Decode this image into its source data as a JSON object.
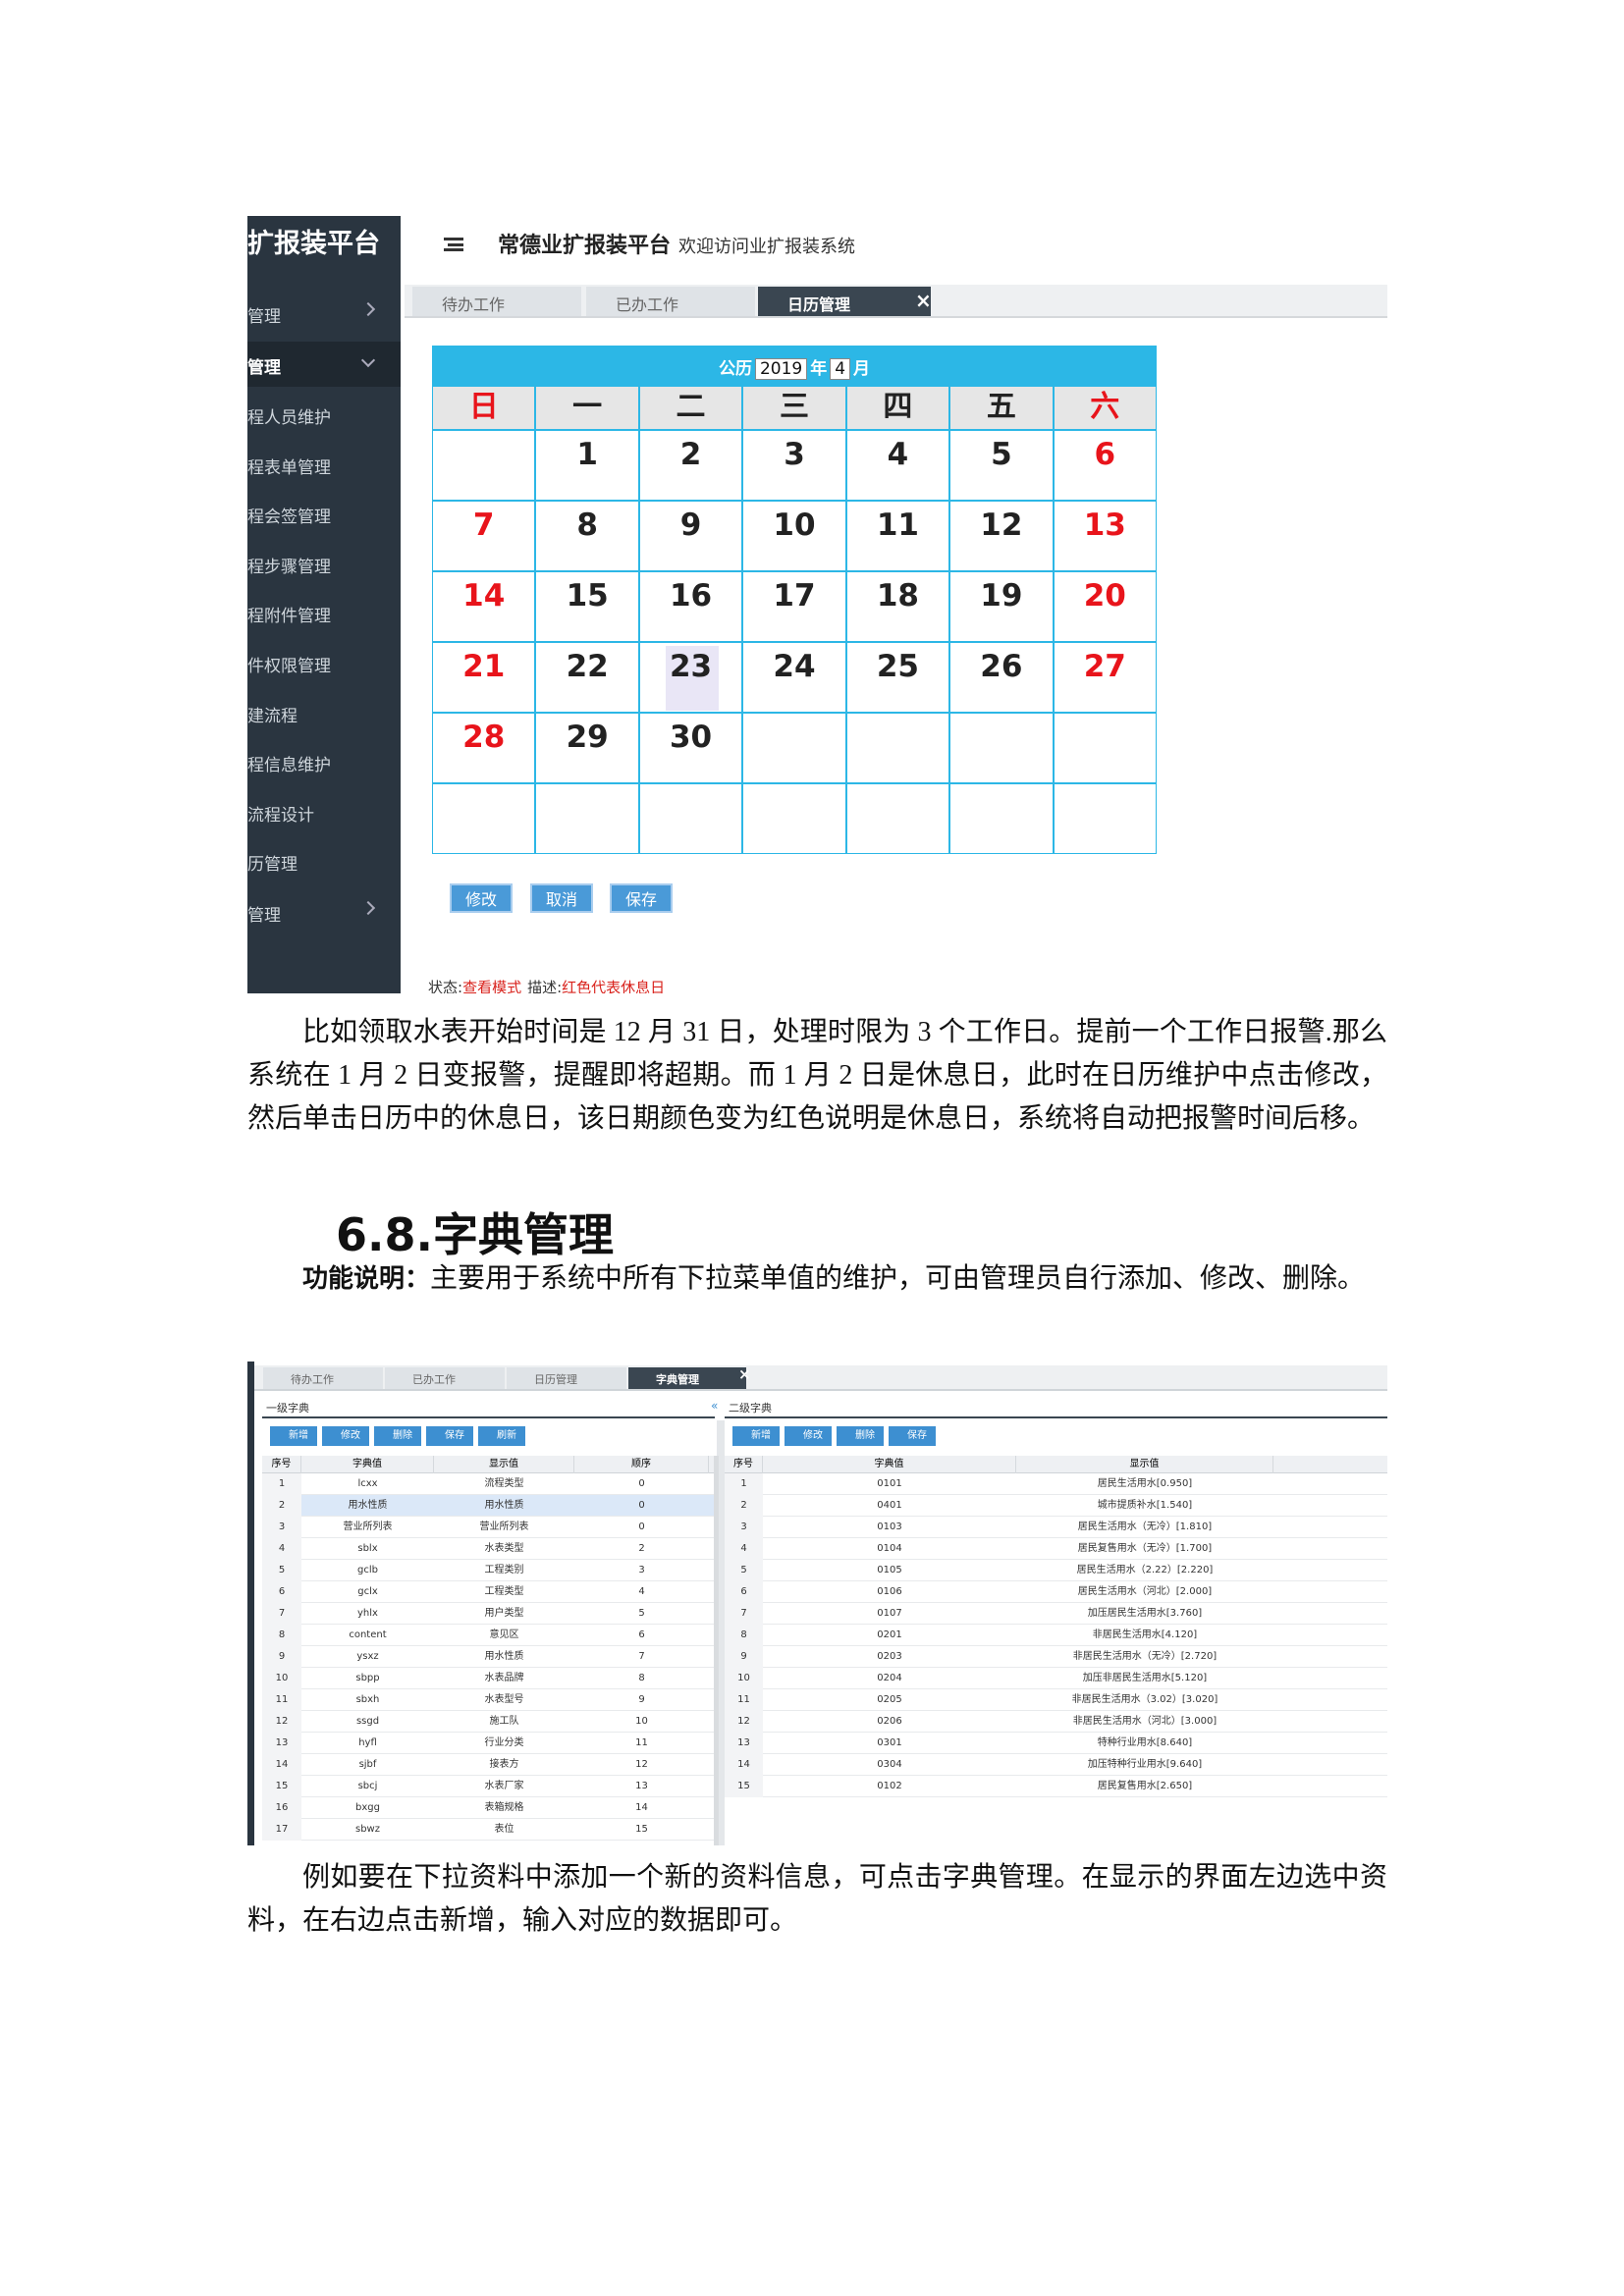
{
  "screenshot1": {
    "sidebar": {
      "title": "扩报装平台",
      "items": [
        "管理",
        "管理",
        "程人员维护",
        "程表单管理",
        "程会签管理",
        "程步骤管理",
        "程附件管理",
        "件权限管理",
        "建流程",
        "程信息维护",
        "流程设计",
        "历管理",
        "管理"
      ]
    },
    "header": {
      "title": "常德业扩报装平台",
      "welcome": "欢迎访问业扩报装系统"
    },
    "tabs": [
      "待办工作",
      "已办工作",
      "日历管理"
    ],
    "calendar": {
      "era": "公历",
      "year": "2019",
      "year_unit": "年",
      "month": "4",
      "month_unit": "月",
      "weekdays": [
        "日",
        "一",
        "二",
        "三",
        "四",
        "五",
        "六"
      ],
      "weeks": [
        [
          null,
          1,
          2,
          3,
          4,
          5,
          6
        ],
        [
          7,
          8,
          9,
          10,
          11,
          12,
          13
        ],
        [
          14,
          15,
          16,
          17,
          18,
          19,
          20
        ],
        [
          21,
          22,
          23,
          24,
          25,
          26,
          27
        ],
        [
          28,
          29,
          30,
          null,
          null,
          null,
          null
        ],
        [
          null,
          null,
          null,
          null,
          null,
          null,
          null
        ]
      ]
    },
    "buttons": [
      "修改",
      "取消",
      "保存"
    ],
    "status": {
      "label": "状态:",
      "value": "查看模式",
      "desc_label": "描述:",
      "desc": "红色代表休息日"
    }
  },
  "paragraph1": "比如领取水表开始时间是 12 月 31 日，处理时限为 3 个工作日。提前一个工作日报警.那么系统在 1 月 2 日变报警，提醒即将超期。而 1 月 2 日是休息日，此时在日历维护中点击修改，然后单击日历中的休息日，该日期颜色变为红色说明是休息日，系统将自动把报警时间后移。",
  "section": "6.8.字典管理",
  "paragraph2": {
    "label": "功能说明：",
    "text": "主要用于系统中所有下拉菜单值的维护，可由管理员自行添加、修改、删除。"
  },
  "screenshot2": {
    "tabs": [
      "待办工作",
      "已办工作",
      "日历管理",
      "字典管理"
    ],
    "left": {
      "title": "一级字典",
      "toolbar": [
        "新增",
        "修改",
        "删除",
        "保存",
        "刷新"
      ],
      "columns": [
        "序号",
        "字典值",
        "显示值",
        "顺序"
      ],
      "rows": [
        [
          "1",
          "lcxx",
          "流程类型",
          "0"
        ],
        [
          "2",
          "用水性质",
          "用水性质",
          "0"
        ],
        [
          "3",
          "营业所列表",
          "营业所列表",
          "0"
        ],
        [
          "4",
          "sblx",
          "水表类型",
          "2"
        ],
        [
          "5",
          "gclb",
          "工程类别",
          "3"
        ],
        [
          "6",
          "gclx",
          "工程类型",
          "4"
        ],
        [
          "7",
          "yhlx",
          "用户类型",
          "5"
        ],
        [
          "8",
          "content",
          "意见区",
          "6"
        ],
        [
          "9",
          "ysxz",
          "用水性质",
          "7"
        ],
        [
          "10",
          "sbpp",
          "水表品牌",
          "8"
        ],
        [
          "11",
          "sbxh",
          "水表型号",
          "9"
        ],
        [
          "12",
          "ssgd",
          "施工队",
          "10"
        ],
        [
          "13",
          "hyfl",
          "行业分类",
          "11"
        ],
        [
          "14",
          "sjbf",
          "接表方",
          "12"
        ],
        [
          "15",
          "sbcj",
          "水表厂家",
          "13"
        ],
        [
          "16",
          "bxgg",
          "表箱规格",
          "14"
        ],
        [
          "17",
          "sbwz",
          "表位",
          "15"
        ]
      ]
    },
    "right": {
      "title": "二级字典",
      "toolbar": [
        "新增",
        "修改",
        "删除",
        "保存"
      ],
      "columns": [
        "序号",
        "字典值",
        "显示值"
      ],
      "rows": [
        [
          "1",
          "0101",
          "居民生活用水[0.950]"
        ],
        [
          "2",
          "0401",
          "城市提质补水[1.540]"
        ],
        [
          "3",
          "0103",
          "居民生活用水（无冷）[1.810]"
        ],
        [
          "4",
          "0104",
          "居民复售用水（无冷）[1.700]"
        ],
        [
          "5",
          "0105",
          "居民生活用水（2.22）[2.220]"
        ],
        [
          "6",
          "0106",
          "居民生活用水（河北）[2.000]"
        ],
        [
          "7",
          "0107",
          "加压居民生活用水[3.760]"
        ],
        [
          "8",
          "0201",
          "非居民生活用水[4.120]"
        ],
        [
          "9",
          "0203",
          "非居民生活用水（无冷）[2.720]"
        ],
        [
          "10",
          "0204",
          "加压非居民生活用水[5.120]"
        ],
        [
          "11",
          "0205",
          "非居民生活用水（3.02）[3.020]"
        ],
        [
          "12",
          "0206",
          "非居民生活用水（河北）[3.000]"
        ],
        [
          "13",
          "0301",
          "特种行业用水[8.640]"
        ],
        [
          "14",
          "0304",
          "加压特种行业用水[9.640]"
        ],
        [
          "15",
          "0102",
          "居民复售用水[2.650]"
        ]
      ]
    }
  },
  "paragraph3": "例如要在下拉资料中添加一个新的资料信息，可点击字典管理。在显示的界面左边选中资料，在右边点击新增，输入对应的数据即可。"
}
